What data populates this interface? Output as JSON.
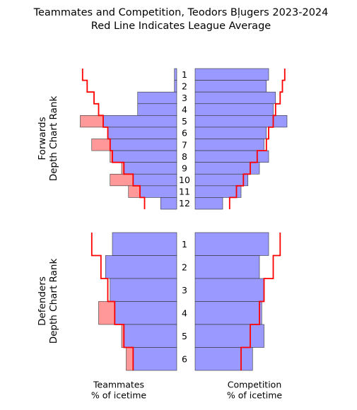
{
  "title": "Teammates and Competition, Teodors Bļugers 2023-2024",
  "subtitle": "Red Line Indicates League Average",
  "colors": {
    "bar_fill": "#9999ff",
    "bar_excess_fill": "#ff9999",
    "bar_edge": "#333333",
    "average_line": "#ff0000"
  },
  "chart_data": {
    "type": "bar",
    "orientation": "horizontal-mirrored",
    "panels": [
      {
        "group_label": "Forwards\nDepth Chart Rank",
        "ranks": [
          "1",
          "2",
          "3",
          "4",
          "5",
          "6",
          "7",
          "8",
          "9",
          "10",
          "11",
          "12"
        ],
        "teammates": {
          "xlabel": "Teammates\n% of icetime",
          "values": [
            0.5,
            0.5,
            8.5,
            8.5,
            21.0,
            15.0,
            18.5,
            14.5,
            12.0,
            14.5,
            10.5,
            3.5
          ],
          "league_average": [
            20.5,
            19.5,
            18.0,
            17.0,
            16.0,
            15.0,
            14.5,
            14.0,
            11.5,
            9.5,
            8.0,
            7.0
          ]
        },
        "competition": {
          "xlabel": "Competition\n% of icetime",
          "values": [
            16.0,
            15.5,
            17.5,
            17.0,
            20.0,
            15.5,
            15.0,
            16.0,
            14.0,
            11.5,
            10.0,
            6.0
          ],
          "league_average": [
            19.5,
            19.0,
            18.5,
            17.5,
            17.0,
            16.0,
            15.5,
            13.5,
            12.0,
            10.5,
            9.0,
            7.5
          ]
        }
      },
      {
        "group_label": "Defenders\nDepth Chart Rank",
        "ranks": [
          "1",
          "2",
          "3",
          "4",
          "5",
          "6"
        ],
        "teammates": {
          "xlabel": "Teammates\n% of icetime",
          "values": [
            14.0,
            15.5,
            14.5,
            17.0,
            12.0,
            11.0
          ],
          "league_average": [
            18.5,
            16.5,
            15.0,
            13.5,
            11.5,
            9.5
          ]
        },
        "competition": {
          "xlabel": "Competition\n% of icetime",
          "values": [
            16.0,
            14.0,
            15.0,
            14.5,
            15.0,
            12.5
          ],
          "league_average": [
            18.5,
            17.0,
            15.0,
            14.0,
            12.0,
            10.0
          ]
        }
      }
    ]
  }
}
